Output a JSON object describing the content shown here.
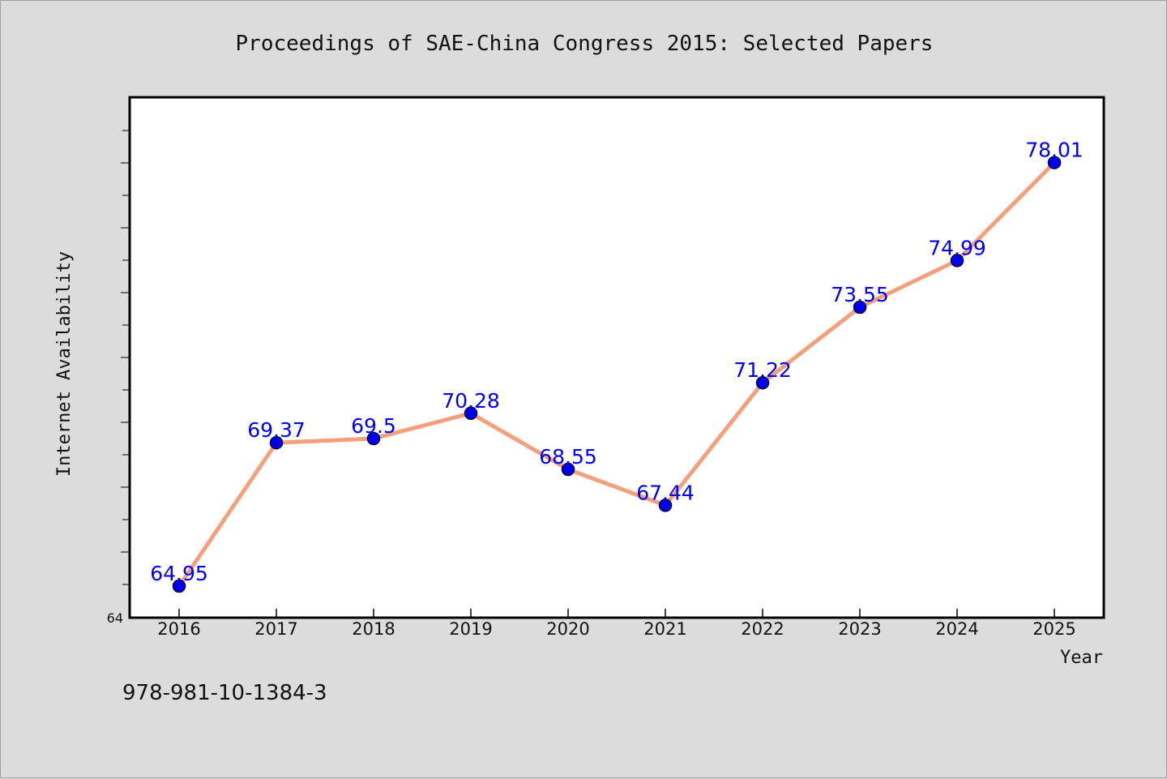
{
  "chart_data": {
    "type": "line",
    "title": "Proceedings of SAE-China Congress 2015: Selected Papers",
    "xlabel": "Year",
    "ylabel": "Internet Availability",
    "categories": [
      "2016",
      "2017",
      "2018",
      "2019",
      "2020",
      "2021",
      "2022",
      "2023",
      "2024",
      "2025"
    ],
    "values": [
      64.95,
      69.37,
      69.5,
      70.28,
      68.55,
      67.44,
      71.22,
      73.55,
      74.99,
      78.01
    ],
    "data_labels": [
      "64.95",
      "69.37",
      "69.5",
      "70.28",
      "68.55",
      "67.44",
      "71.22",
      "73.55",
      "74.99",
      "78.01"
    ],
    "ylim": [
      64,
      80
    ],
    "y_tick_labels": [
      "64"
    ],
    "grid": false,
    "legend": "none",
    "colors": {
      "line": "#f4a07c",
      "marker": "#0000ee",
      "marker_edge": "#000033",
      "data_label": "#0000ee",
      "plot_background": "#ffffff",
      "page_background": "#dcdcdc"
    }
  },
  "footer": {
    "isbn": "978-981-10-1384-3"
  }
}
